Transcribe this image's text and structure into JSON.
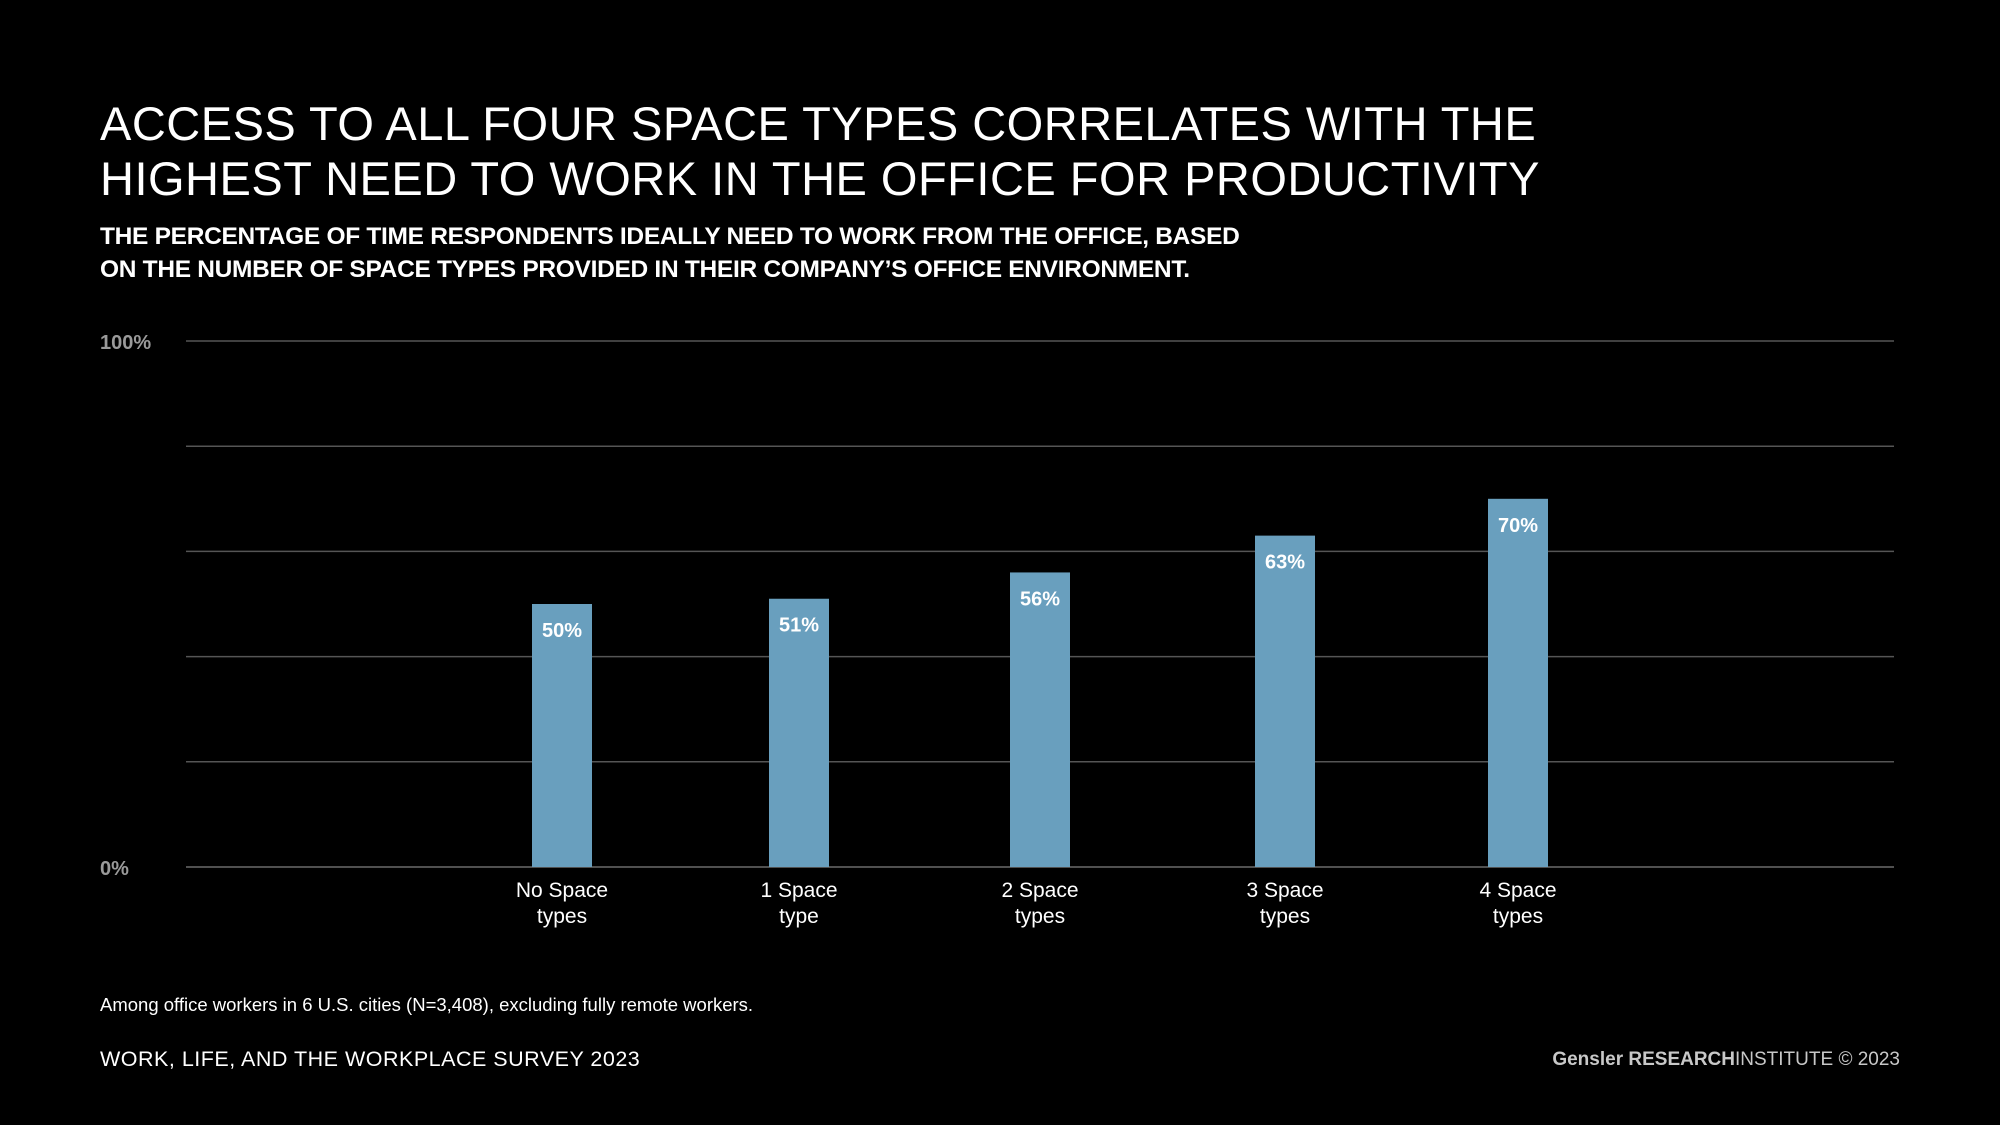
{
  "header": {
    "title_line1": "ACCESS TO ALL FOUR SPACE TYPES CORRELATES WITH THE",
    "title_line2": "HIGHEST NEED TO WORK IN THE OFFICE FOR PRODUCTIVITY",
    "subtitle_line1": "THE PERCENTAGE OF TIME RESPONDENTS IDEALLY NEED TO WORK FROM THE OFFICE, BASED",
    "subtitle_line2": "ON THE NUMBER OF SPACE TYPES PROVIDED IN THEIR COMPANY’S OFFICE ENVIRONMENT."
  },
  "chart_data": {
    "type": "bar",
    "categories": [
      [
        "No Space",
        "types"
      ],
      [
        "1 Space",
        "type"
      ],
      [
        "2 Space",
        "types"
      ],
      [
        "3 Space",
        "types"
      ],
      [
        "4 Space",
        "types"
      ]
    ],
    "values": [
      50,
      51,
      56,
      63,
      70
    ],
    "value_labels": [
      "50%",
      "51%",
      "56%",
      "63%",
      "70%"
    ],
    "ylim": [
      0,
      100
    ],
    "y_tick_labels": [
      {
        "value": 0,
        "label": "0%"
      },
      {
        "value": 100,
        "label": "100%"
      }
    ],
    "gridlines": [
      0,
      20,
      40,
      60,
      80,
      100
    ],
    "grid": true,
    "bar_color": "#699fbe"
  },
  "footer": {
    "note": "Among office workers in 6 U.S. cities (N=3,408), excluding fully remote workers.",
    "survey": "WORK, LIFE, AND THE WORKPLACE SURVEY 2023",
    "brand_name": "Gensler",
    "brand_research": "RESEARCH",
    "brand_institute": "INSTITUTE © 2023"
  },
  "colors": {
    "background": "#000000",
    "text": "#ffffff",
    "axis_label": "#9a9a9a",
    "gridline": "#555555",
    "bar": "#699fbe"
  }
}
